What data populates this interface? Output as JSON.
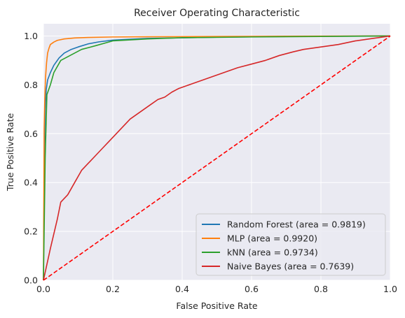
{
  "chart_data": {
    "type": "line",
    "title": "Receiver Operating Characteristic",
    "xlabel": "False Positive Rate",
    "ylabel": "True Positive Rate",
    "xlim": [
      0.0,
      1.0
    ],
    "ylim": [
      0.0,
      1.05
    ],
    "xticks": [
      "0.0",
      "0.2",
      "0.4",
      "0.6",
      "0.8",
      "1.0"
    ],
    "yticks": [
      "0.0",
      "0.2",
      "0.4",
      "0.6",
      "0.8",
      "1.0"
    ],
    "grid": true,
    "legend_position": "lower-right",
    "series": [
      {
        "name": "Random Forest (area = 0.9819)",
        "color": "#1f77b4",
        "x": [
          0,
          0.003,
          0.005,
          0.008,
          0.012,
          0.02,
          0.03,
          0.045,
          0.06,
          0.08,
          0.1,
          0.13,
          0.16,
          0.2,
          0.3,
          0.5,
          0.7,
          1.0
        ],
        "y": [
          0,
          0.55,
          0.7,
          0.78,
          0.82,
          0.85,
          0.88,
          0.91,
          0.93,
          0.945,
          0.955,
          0.968,
          0.976,
          0.983,
          0.99,
          0.995,
          0.998,
          1.0
        ]
      },
      {
        "name": "MLP (area = 0.9920)",
        "color": "#ff7f0e",
        "x": [
          0,
          0.002,
          0.004,
          0.006,
          0.009,
          0.012,
          0.016,
          0.02,
          0.03,
          0.04,
          0.06,
          0.09,
          0.13,
          0.2,
          0.3,
          0.5,
          0.7,
          1.0
        ],
        "y": [
          0,
          0.62,
          0.75,
          0.83,
          0.89,
          0.93,
          0.95,
          0.965,
          0.975,
          0.982,
          0.988,
          0.992,
          0.994,
          0.996,
          0.997,
          0.998,
          0.999,
          1.0
        ]
      },
      {
        "name": "kNN (area = 0.9734)",
        "color": "#2ca02c",
        "x": [
          0,
          0.005,
          0.01,
          0.02,
          0.03,
          0.05,
          0.07,
          0.09,
          0.11,
          0.15,
          0.2,
          0.3,
          0.4,
          0.6,
          0.8,
          1.0
        ],
        "y": [
          0,
          0.5,
          0.76,
          0.8,
          0.85,
          0.9,
          0.915,
          0.93,
          0.945,
          0.96,
          0.98,
          0.988,
          0.993,
          0.996,
          0.998,
          1.0
        ]
      },
      {
        "name": "Naive Bayes (area = 0.7639)",
        "color": "#d62728",
        "x": [
          0,
          0.02,
          0.04,
          0.05,
          0.07,
          0.09,
          0.11,
          0.13,
          0.15,
          0.17,
          0.19,
          0.21,
          0.23,
          0.25,
          0.27,
          0.29,
          0.31,
          0.33,
          0.35,
          0.37,
          0.39,
          0.41,
          0.43,
          0.45,
          0.47,
          0.5,
          0.53,
          0.56,
          0.6,
          0.64,
          0.68,
          0.72,
          0.75,
          0.8,
          0.85,
          0.9,
          0.95,
          1.0
        ],
        "y": [
          0,
          0.13,
          0.25,
          0.32,
          0.35,
          0.4,
          0.45,
          0.48,
          0.51,
          0.54,
          0.57,
          0.6,
          0.63,
          0.66,
          0.68,
          0.7,
          0.72,
          0.74,
          0.75,
          0.77,
          0.785,
          0.795,
          0.805,
          0.815,
          0.825,
          0.84,
          0.855,
          0.87,
          0.885,
          0.9,
          0.92,
          0.935,
          0.945,
          0.955,
          0.965,
          0.98,
          0.99,
          1.0
        ]
      },
      {
        "color": "#ff0000",
        "dashed": true,
        "x": [
          0,
          1
        ],
        "y": [
          0,
          1
        ]
      }
    ]
  }
}
